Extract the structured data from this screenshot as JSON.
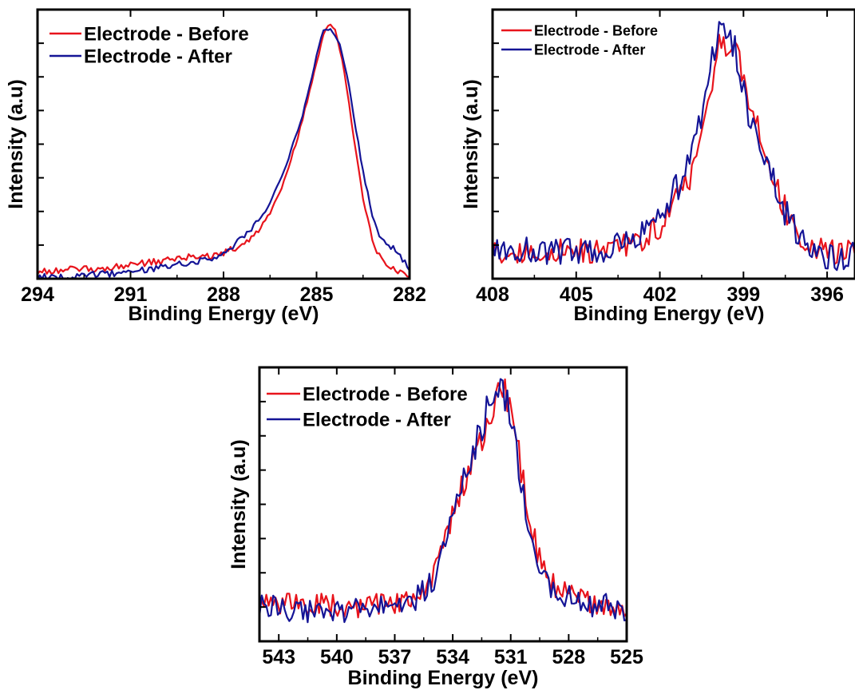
{
  "colors": {
    "before": "#e8141c",
    "after": "#141496",
    "frame": "#000000"
  },
  "chart_data": [
    {
      "type": "line",
      "xlabel": "Binding Energy (eV)",
      "ylabel": "Intensity (a.u)",
      "xlim": [
        294,
        282
      ],
      "x_ticks": [
        "294",
        "291",
        "288",
        "285",
        "282"
      ],
      "legend_position": "top-left",
      "series": [
        {
          "name": "Electrode - Before",
          "x": [
            294,
            293,
            292,
            291,
            290,
            289.5,
            289,
            288.5,
            288,
            287.5,
            287,
            286.5,
            286,
            285.5,
            285.2,
            285,
            284.8,
            284.6,
            284.4,
            284.2,
            284,
            283.8,
            283.5,
            283.2,
            283,
            282.5,
            282
          ],
          "values": [
            2,
            3,
            3,
            5,
            6,
            7,
            8,
            8,
            9,
            12,
            16,
            24,
            38,
            58,
            72,
            82,
            92,
            97,
            94,
            85,
            70,
            54,
            30,
            14,
            8,
            3,
            1
          ]
        },
        {
          "name": "Electrode - After",
          "x": [
            294,
            293,
            292,
            291,
            290,
            289.5,
            289,
            288.5,
            288,
            287.5,
            287,
            286.5,
            286,
            285.5,
            285.2,
            285,
            284.8,
            284.6,
            284.4,
            284.2,
            284,
            283.8,
            283.5,
            283.2,
            283,
            282.5,
            282
          ],
          "values": [
            0,
            0,
            1,
            2,
            4,
            5,
            6,
            7,
            9,
            14,
            20,
            28,
            42,
            60,
            74,
            85,
            94,
            95,
            93,
            87,
            76,
            62,
            40,
            24,
            16,
            11,
            3
          ]
        }
      ]
    },
    {
      "type": "line",
      "xlabel": "Binding Energy (eV)",
      "ylabel": "Intensity (a.u)",
      "xlim": [
        408,
        395
      ],
      "x_ticks": [
        "408",
        "405",
        "402",
        "399",
        "396"
      ],
      "legend_position": "top-left",
      "series": [
        {
          "name": "Electrode - Before",
          "x": [
            408,
            407,
            406,
            405,
            404,
            403,
            402.5,
            402,
            401.5,
            401,
            400.5,
            400.2,
            400,
            399.8,
            399.5,
            399.2,
            399,
            398.5,
            398,
            397.5,
            397,
            396.5,
            396,
            395.5,
            395
          ],
          "values": [
            10,
            9,
            10,
            10,
            11,
            13,
            16,
            20,
            28,
            36,
            52,
            70,
            82,
            90,
            91,
            84,
            72,
            56,
            40,
            26,
            16,
            11,
            10,
            9,
            10
          ]
        },
        {
          "name": "Electrode - After",
          "x": [
            408,
            407,
            406,
            405,
            404,
            403,
            402.5,
            402,
            401.5,
            401,
            400.5,
            400.2,
            400,
            399.8,
            399.5,
            399.2,
            399,
            398.5,
            398,
            397.5,
            397,
            396.5,
            396,
            395.5,
            395
          ],
          "values": [
            10,
            11,
            9,
            10,
            11,
            14,
            18,
            24,
            32,
            42,
            60,
            78,
            90,
            95,
            93,
            84,
            70,
            54,
            38,
            25,
            15,
            10,
            8,
            7,
            10
          ]
        }
      ]
    },
    {
      "type": "line",
      "xlabel": "Binding Energy (eV)",
      "ylabel": "Intensity (a.u)",
      "xlim": [
        544,
        525
      ],
      "x_ticks": [
        "543",
        "540",
        "537",
        "534",
        "531",
        "528",
        "525"
      ],
      "legend_position": "top-left",
      "series": [
        {
          "name": "Electrode - Before",
          "x": [
            544,
            543,
            542,
            541,
            540,
            539,
            538,
            537,
            536,
            535,
            534.5,
            534,
            533.5,
            533,
            532.5,
            532,
            531.5,
            531,
            530.5,
            530,
            529.5,
            529,
            528,
            527,
            526,
            525
          ],
          "values": [
            14,
            14,
            13,
            13,
            13,
            12,
            13,
            14,
            17,
            24,
            35,
            48,
            58,
            66,
            76,
            86,
            94,
            90,
            66,
            44,
            30,
            22,
            17,
            14,
            13,
            12
          ]
        },
        {
          "name": "Electrode - After",
          "x": [
            544,
            543,
            542,
            541,
            540,
            539,
            538,
            537,
            536,
            535,
            534.5,
            534,
            533.5,
            533,
            532.5,
            532,
            531.5,
            531,
            530.5,
            530,
            529.5,
            529,
            528,
            527,
            526,
            525
          ],
          "values": [
            13,
            12,
            10,
            11,
            11,
            11,
            12,
            12,
            15,
            22,
            34,
            48,
            60,
            70,
            80,
            92,
            96,
            86,
            60,
            38,
            26,
            20,
            16,
            13,
            13,
            11
          ]
        }
      ]
    }
  ]
}
